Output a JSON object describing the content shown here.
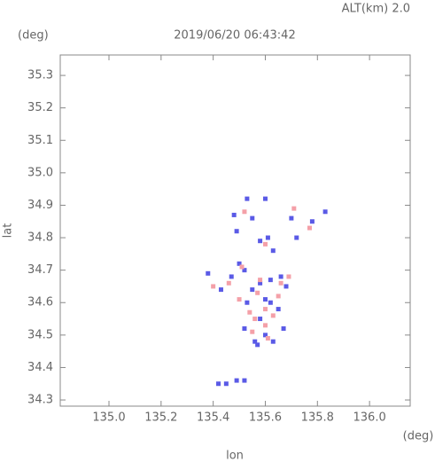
{
  "chart_data": {
    "type": "scatter",
    "title": "2019/06/20 06:43:42",
    "subtitle": "ALT(km) 2.0",
    "y_unit": "(deg)",
    "x_unit": "(deg)",
    "x_label": "lon",
    "y_label": "lat",
    "xlim": [
      134.813,
      136.156
    ],
    "ylim": [
      34.281,
      35.363
    ],
    "xticks": [
      {
        "value": 135.0,
        "label": "135.0"
      },
      135.2,
      135.4,
      135.6,
      135.8,
      {
        "value": 136.0,
        "label": "136.0"
      }
    ],
    "yticks": [
      34.3,
      34.4,
      34.5,
      34.6,
      34.7,
      34.8,
      34.9,
      {
        "value": 35.0,
        "label": "35.0"
      },
      35.1,
      35.2,
      35.3
    ],
    "series": [
      {
        "color": "#5a5ae6",
        "x": [
          135.53,
          135.6,
          135.48,
          135.55,
          135.58,
          135.61,
          135.63,
          135.7,
          135.72,
          135.78,
          135.83,
          135.49,
          135.5,
          135.52,
          135.47,
          135.58,
          135.62,
          135.66,
          135.68,
          135.55,
          135.6,
          135.53,
          135.65,
          135.58,
          135.52,
          135.6,
          135.56,
          135.63,
          135.67,
          135.42,
          135.45,
          135.49,
          135.52,
          135.38,
          135.43,
          135.57,
          135.62
        ],
        "values": [
          34.92,
          34.92,
          34.87,
          34.86,
          34.79,
          34.8,
          34.76,
          34.86,
          34.8,
          34.85,
          34.88,
          34.82,
          34.72,
          34.7,
          34.68,
          34.66,
          34.67,
          34.68,
          34.65,
          34.64,
          34.61,
          34.6,
          34.58,
          34.55,
          34.52,
          34.5,
          34.48,
          34.48,
          34.52,
          34.35,
          34.35,
          34.36,
          34.36,
          34.69,
          34.64,
          34.47,
          34.6
        ]
      },
      {
        "color": "#f4a0a8",
        "x": [
          135.71,
          135.52,
          135.6,
          135.46,
          135.51,
          135.57,
          135.6,
          135.63,
          135.66,
          135.69,
          135.56,
          135.6,
          135.55,
          135.4,
          135.5,
          135.65,
          135.58,
          135.54,
          135.61,
          135.77
        ],
        "values": [
          34.89,
          34.88,
          34.78,
          34.66,
          34.71,
          34.63,
          34.58,
          34.56,
          34.66,
          34.68,
          34.55,
          34.53,
          34.51,
          34.65,
          34.61,
          34.62,
          34.67,
          34.57,
          34.49,
          34.83
        ]
      }
    ]
  }
}
